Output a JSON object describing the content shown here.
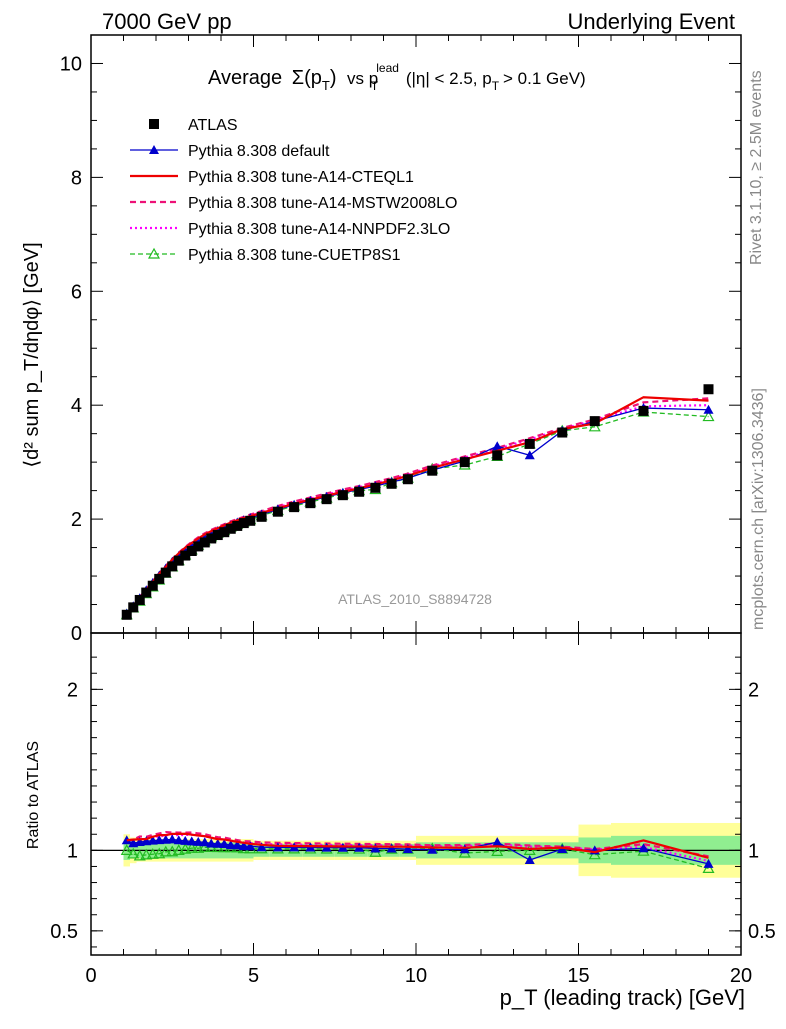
{
  "header": {
    "left": "7000 GeV pp",
    "right": "Underlying Event"
  },
  "side_labels": {
    "rivet": "Rivet 3.1.10, ≥ 2.5M events",
    "mcplots": "mcplots.cern.ch [arXiv:1306.3436]"
  },
  "chart_data": {
    "type": "line",
    "title_parts": {
      "average": "Average",
      "sigma": "Σ(p",
      "sigma_sub": "T",
      "sigma_close": ")",
      "vs": "vs p",
      "vs_sup": "lead",
      "vs_sub": "T",
      "cuts_1": "(|η| < 2.5, p",
      "cuts_sub": "T",
      "cuts_2": "> 0.1 GeV)"
    },
    "analysis_id": "ATLAS_2010_S8894728",
    "ylabel_main": "⟨d² sum p_T/dηdφ⟩ [GeV]",
    "ylabel_ratio": "Ratio to ATLAS",
    "xlabel": "p_T (leading track) [GeV]",
    "xlim": [
      0,
      20
    ],
    "ylim_main": [
      0,
      10.5
    ],
    "ylim_ratio": [
      0.35,
      2.35
    ],
    "x_ticks": [
      "0",
      "5",
      "10",
      "15",
      "20"
    ],
    "y_ticks_main": [
      "0",
      "2",
      "4",
      "6",
      "8",
      "10"
    ],
    "y_ticks_ratio": [
      "0.5",
      "1",
      "2"
    ],
    "x": [
      1.1,
      1.3,
      1.5,
      1.7,
      1.9,
      2.1,
      2.3,
      2.5,
      2.7,
      2.9,
      3.1,
      3.3,
      3.5,
      3.7,
      3.9,
      4.1,
      4.3,
      4.5,
      4.7,
      4.9,
      5.25,
      5.75,
      6.25,
      6.75,
      7.25,
      7.75,
      8.25,
      8.75,
      9.25,
      9.75,
      10.5,
      11.5,
      12.5,
      13.5,
      14.5,
      15.5,
      17.0,
      19.0
    ],
    "colors": {
      "atlas": "#000000",
      "default": "#0000cc",
      "cteql1": "#ee0000",
      "mstw": "#ee1177",
      "nnpdf": "#ff00ff",
      "cuetp": "#22bb22",
      "band_inner": "#90ee90",
      "band_outer": "#ffff99"
    },
    "series": [
      {
        "key": "atlas",
        "name": "ATLAS",
        "values": [
          0.32,
          0.45,
          0.58,
          0.71,
          0.83,
          0.95,
          1.06,
          1.17,
          1.27,
          1.36,
          1.44,
          1.52,
          1.59,
          1.66,
          1.72,
          1.77,
          1.83,
          1.88,
          1.93,
          1.97,
          2.04,
          2.13,
          2.21,
          2.28,
          2.35,
          2.42,
          2.48,
          2.55,
          2.62,
          2.7,
          2.85,
          3.0,
          3.12,
          3.32,
          3.52,
          3.72,
          3.9,
          4.28
        ]
      },
      {
        "key": "default",
        "name": "Pythia 8.308 default",
        "values": [
          0.34,
          0.47,
          0.61,
          0.75,
          0.88,
          1.01,
          1.13,
          1.25,
          1.35,
          1.44,
          1.52,
          1.6,
          1.67,
          1.73,
          1.79,
          1.84,
          1.89,
          1.94,
          1.98,
          2.02,
          2.08,
          2.17,
          2.25,
          2.32,
          2.39,
          2.46,
          2.52,
          2.58,
          2.65,
          2.72,
          2.86,
          3.02,
          3.28,
          3.12,
          3.55,
          3.72,
          3.95,
          3.92
        ]
      },
      {
        "key": "cteql1",
        "name": "Pythia 8.308 tune-A14-CTEQL1",
        "values": [
          0.34,
          0.48,
          0.62,
          0.76,
          0.9,
          1.04,
          1.16,
          1.29,
          1.4,
          1.5,
          1.58,
          1.66,
          1.73,
          1.79,
          1.84,
          1.89,
          1.94,
          1.98,
          2.02,
          2.05,
          2.11,
          2.19,
          2.27,
          2.34,
          2.41,
          2.48,
          2.54,
          2.61,
          2.68,
          2.76,
          2.9,
          3.05,
          3.2,
          3.35,
          3.58,
          3.68,
          4.14,
          4.08
        ]
      },
      {
        "key": "mstw",
        "name": "Pythia 8.308 tune-A14-MSTW2008LO",
        "values": [
          0.34,
          0.48,
          0.63,
          0.77,
          0.91,
          1.05,
          1.18,
          1.3,
          1.41,
          1.51,
          1.6,
          1.68,
          1.75,
          1.81,
          1.86,
          1.91,
          1.96,
          2.0,
          2.04,
          2.08,
          2.14,
          2.23,
          2.31,
          2.38,
          2.45,
          2.52,
          2.58,
          2.65,
          2.72,
          2.8,
          2.94,
          3.1,
          3.25,
          3.42,
          3.6,
          3.75,
          4.05,
          4.12
        ]
      },
      {
        "key": "nnpdf",
        "name": "Pythia 8.308 tune-A14-NNPDF2.3LO",
        "values": [
          0.34,
          0.48,
          0.62,
          0.76,
          0.9,
          1.03,
          1.16,
          1.28,
          1.39,
          1.49,
          1.58,
          1.66,
          1.73,
          1.79,
          1.84,
          1.89,
          1.94,
          1.98,
          2.02,
          2.06,
          2.12,
          2.21,
          2.29,
          2.36,
          2.43,
          2.5,
          2.56,
          2.63,
          2.7,
          2.78,
          2.92,
          3.08,
          3.23,
          3.4,
          3.58,
          3.74,
          3.98,
          4.0
        ]
      },
      {
        "key": "cuetp",
        "name": "Pythia 8.308 tune-CUETP8S1",
        "values": [
          0.32,
          0.44,
          0.56,
          0.69,
          0.81,
          0.93,
          1.05,
          1.16,
          1.27,
          1.37,
          1.46,
          1.54,
          1.62,
          1.69,
          1.75,
          1.8,
          1.86,
          1.91,
          1.95,
          1.99,
          2.06,
          2.15,
          2.23,
          2.3,
          2.37,
          2.44,
          2.5,
          2.52,
          2.64,
          2.72,
          2.88,
          2.95,
          3.1,
          3.32,
          3.55,
          3.62,
          3.88,
          3.8
        ]
      }
    ],
    "ratio_band_inner": [
      0.06,
      0.05,
      0.05,
      0.05,
      0.05,
      0.05,
      0.05,
      0.05,
      0.05,
      0.05,
      0.05,
      0.05,
      0.05,
      0.05,
      0.05,
      0.05,
      0.05,
      0.05,
      0.05,
      0.05,
      0.04,
      0.04,
      0.04,
      0.04,
      0.04,
      0.04,
      0.04,
      0.04,
      0.04,
      0.04,
      0.05,
      0.05,
      0.05,
      0.05,
      0.05,
      0.08,
      0.09,
      0.09
    ],
    "ratio_band_outer": [
      0.1,
      0.08,
      0.07,
      0.07,
      0.07,
      0.07,
      0.07,
      0.07,
      0.07,
      0.07,
      0.07,
      0.07,
      0.07,
      0.07,
      0.07,
      0.07,
      0.07,
      0.07,
      0.07,
      0.07,
      0.06,
      0.06,
      0.06,
      0.06,
      0.06,
      0.06,
      0.06,
      0.06,
      0.06,
      0.06,
      0.09,
      0.09,
      0.09,
      0.09,
      0.09,
      0.16,
      0.17,
      0.17
    ],
    "bin_edges": [
      1.0,
      1.2,
      1.4,
      1.6,
      1.8,
      2.0,
      2.2,
      2.4,
      2.6,
      2.8,
      3.0,
      3.2,
      3.4,
      3.6,
      3.8,
      4.0,
      4.2,
      4.4,
      4.6,
      4.8,
      5.0,
      5.5,
      6.0,
      6.5,
      7.0,
      7.5,
      8.0,
      8.5,
      9.0,
      9.5,
      10.0,
      11.0,
      12.0,
      13.0,
      14.0,
      15.0,
      16.0,
      18.0,
      20.0
    ],
    "legend_placement": "top-left"
  }
}
